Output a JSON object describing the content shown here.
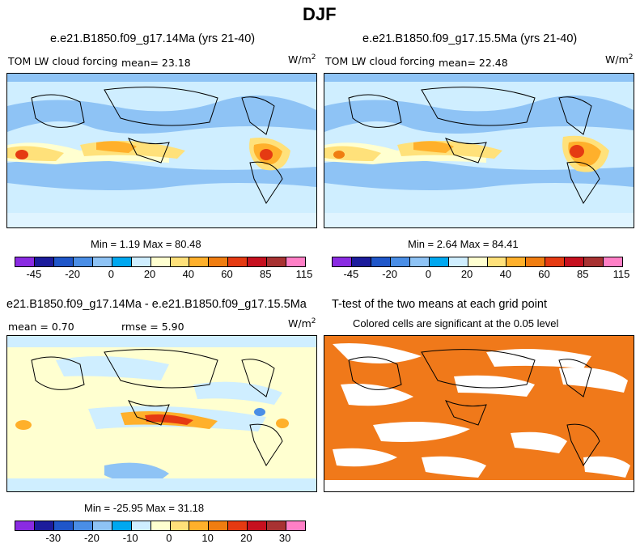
{
  "title": "DJF",
  "units": "W/m",
  "units_sup": "2",
  "panels": {
    "p1": {
      "title": "e.e21.B1850.f09_g17.14Ma (yrs 21-40)",
      "var_label": "TOM LW cloud forcing",
      "mean_text": "mean=  23.18",
      "minmax": "Min =   1.19 Max =  80.48"
    },
    "p2": {
      "title": "e.e21.B1850.f09_g17.15.5Ma (yrs 21-40)",
      "var_label": "TOM LW cloud forcing",
      "mean_text": "mean=  22.48",
      "minmax": "Min =   2.64 Max =  84.41"
    },
    "p3": {
      "title": "e21.B1850.f09_g17.14Ma - e.e21.B1850.f09_g17.15.5Ma",
      "mean_text": "mean =   0.70",
      "rmse_text": "rmse =   5.90",
      "minmax": "Min = -25.95 Max =  31.18"
    },
    "p4": {
      "title": "T-test of the two means at each grid point",
      "subtitle": "Colored cells are significant at the 0.05 level"
    }
  },
  "colorbar_top": {
    "colors": [
      "#8a2be2",
      "#1c1c9c",
      "#1f56c9",
      "#4a8ee6",
      "#8ec3f5",
      "#00a8f0",
      "#cfeeff",
      "#ffffd0",
      "#ffe17a",
      "#ffb02b",
      "#f07d10",
      "#e53a12",
      "#c6101f",
      "#a83232",
      "#ff7fc6"
    ],
    "ticks": [
      "-45",
      "-20",
      "0",
      "20",
      "40",
      "60",
      "85",
      "115"
    ]
  },
  "colorbar_diff": {
    "colors": [
      "#8a2be2",
      "#1c1c9c",
      "#1f56c9",
      "#4a8ee6",
      "#8ec3f5",
      "#00a8f0",
      "#cfeeff",
      "#ffffd0",
      "#ffe17a",
      "#ffb02b",
      "#f07d10",
      "#e53a12",
      "#c6101f",
      "#a83232",
      "#ff7fc6"
    ],
    "ticks": [
      "-30",
      "-20",
      "-10",
      "0",
      "10",
      "20",
      "30"
    ]
  },
  "ttest_color": "#f0791a",
  "chart_data": [
    {
      "type": "heatmap",
      "title": "e.e21.B1850.f09_g17.14Ma (yrs 21-40)",
      "variable": "TOM LW cloud forcing",
      "units": "W/m2",
      "mean": 23.18,
      "min": 1.19,
      "max": 80.48,
      "colorbar_levels": [
        -45,
        -20,
        0,
        20,
        40,
        60,
        85,
        115
      ]
    },
    {
      "type": "heatmap",
      "title": "e.e21.B1850.f09_g17.15.5Ma (yrs 21-40)",
      "variable": "TOM LW cloud forcing",
      "units": "W/m2",
      "mean": 22.48,
      "min": 2.64,
      "max": 84.41,
      "colorbar_levels": [
        -45,
        -20,
        0,
        20,
        40,
        60,
        85,
        115
      ]
    },
    {
      "type": "heatmap",
      "title": "e21.B1850.f09_g17.14Ma - e.e21.B1850.f09_g17.15.5Ma",
      "units": "W/m2",
      "mean": 0.7,
      "rmse": 5.9,
      "min": -25.95,
      "max": 31.18,
      "colorbar_levels": [
        -30,
        -20,
        -10,
        0,
        10,
        20,
        30
      ]
    },
    {
      "type": "heatmap",
      "title": "T-test of the two means at each grid point",
      "subtitle": "Colored cells are significant at the 0.05 level"
    }
  ]
}
